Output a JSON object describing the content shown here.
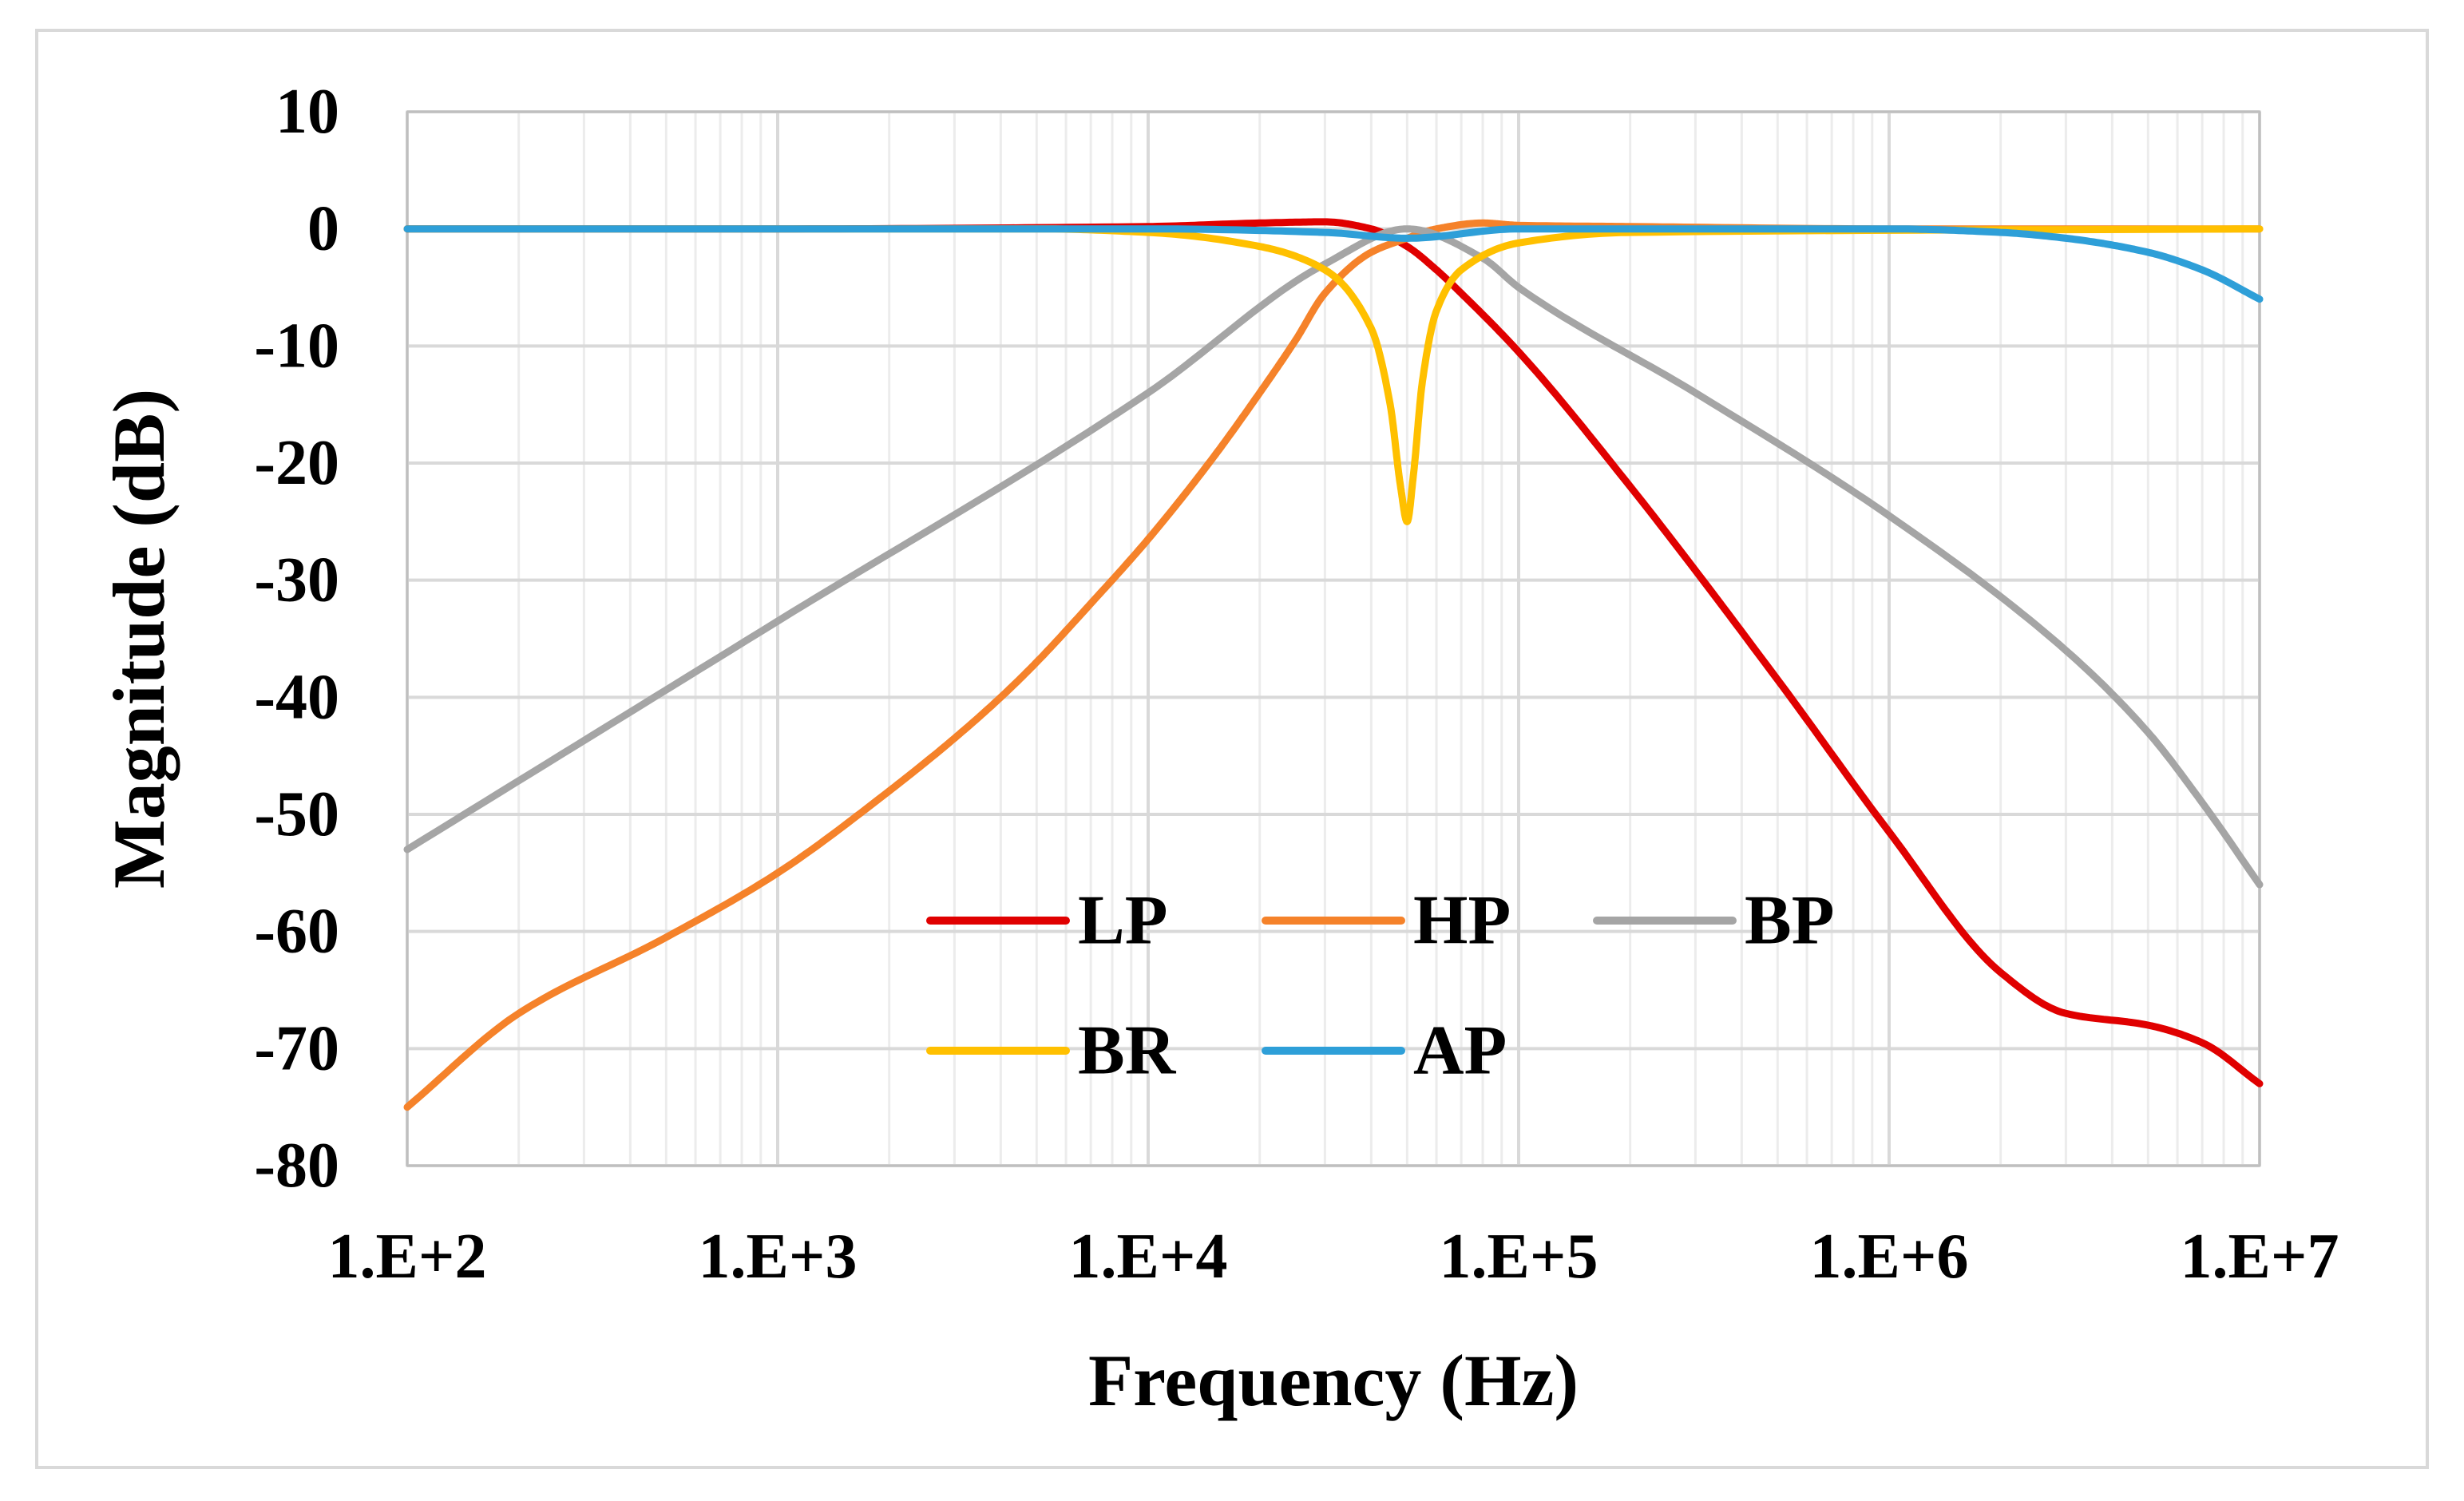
{
  "chart_data": {
    "type": "line",
    "xlabel": "Frequency (Hz)",
    "ylabel": "Magnitude (dB)",
    "x_scale": "log",
    "xlim": [
      100,
      10000000
    ],
    "ylim": [
      -80,
      10
    ],
    "x_ticks": [
      {
        "value": 100,
        "label": "1.E+2"
      },
      {
        "value": 1000,
        "label": "1.E+3"
      },
      {
        "value": 10000,
        "label": "1.E+4"
      },
      {
        "value": 100000,
        "label": "1.E+5"
      },
      {
        "value": 1000000,
        "label": "1.E+6"
      },
      {
        "value": 10000000,
        "label": "1.E+7"
      }
    ],
    "y_ticks": [
      {
        "value": 10,
        "label": "10"
      },
      {
        "value": 0,
        "label": "0"
      },
      {
        "value": -10,
        "label": "-10"
      },
      {
        "value": -20,
        "label": "-20"
      },
      {
        "value": -30,
        "label": "-30"
      },
      {
        "value": -40,
        "label": "-40"
      },
      {
        "value": -50,
        "label": "-50"
      },
      {
        "value": -60,
        "label": "-60"
      },
      {
        "value": -70,
        "label": "-70"
      },
      {
        "value": -80,
        "label": "-80"
      }
    ],
    "grid": true,
    "legend_position": "bottom-center",
    "series": [
      {
        "name": "LP",
        "color": "#e00000",
        "x": [
          100,
          1000,
          10000,
          20000,
          30000,
          40000,
          50000,
          60000,
          70000,
          100000,
          200000,
          500000,
          1000000,
          2000000,
          3000000,
          5000000,
          7000000,
          10000000
        ],
        "y": [
          0,
          0,
          0.2,
          0.5,
          0.6,
          0,
          -1.5,
          -3.5,
          -5.5,
          -10.5,
          -22,
          -38.5,
          -51.5,
          -63.5,
          -67,
          -68,
          -69.5,
          -73
        ]
      },
      {
        "name": "HP",
        "color": "#f5822a",
        "x": [
          100,
          200,
          500,
          1000,
          2000,
          3000,
          4000,
          5000,
          7000,
          10000,
          15000,
          20000,
          25000,
          30000,
          40000,
          50000,
          60000,
          80000,
          100000,
          200000,
          1000000,
          10000000
        ],
        "y": [
          -75,
          -67,
          -60.5,
          -55,
          -48,
          -43.5,
          -40,
          -37,
          -32,
          -26.5,
          -19.5,
          -14,
          -9.5,
          -5.5,
          -2,
          -0.8,
          0,
          0.5,
          0.3,
          0.2,
          0,
          0
        ]
      },
      {
        "name": "BP",
        "color": "#a5a5a5",
        "x": [
          100,
          1000,
          10000,
          30000,
          50000,
          80000,
          100000,
          300000,
          1000000,
          3000000,
          5000000,
          7000000,
          10000000
        ],
        "y": [
          -53,
          -33.5,
          -14,
          -3,
          0,
          -2.5,
          -5,
          -14,
          -24.5,
          -36,
          -43,
          -49,
          -56
        ]
      },
      {
        "name": "BR",
        "color": "#ffc000",
        "x": [
          100,
          5000,
          10000,
          20000,
          30000,
          40000,
          45000,
          48000,
          50000,
          52000,
          55000,
          60000,
          70000,
          100000,
          200000,
          10000000
        ],
        "y": [
          0,
          0,
          -0.3,
          -1.5,
          -3.5,
          -8.5,
          -15,
          -22,
          -25,
          -21,
          -13,
          -7,
          -3.5,
          -1.2,
          -0.3,
          0
        ]
      },
      {
        "name": "AP",
        "color": "#2e9fd8",
        "x": [
          100,
          10000,
          30000,
          50000,
          100000,
          1000000,
          2000000,
          3000000,
          5000000,
          7000000,
          10000000
        ],
        "y": [
          0,
          0,
          -0.3,
          -0.8,
          0,
          0,
          -0.3,
          -0.8,
          -2,
          -3.5,
          -6
        ]
      }
    ]
  }
}
